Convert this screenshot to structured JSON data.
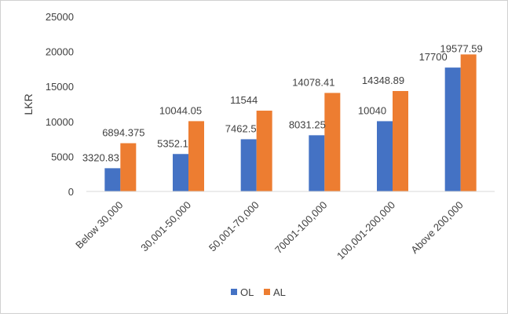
{
  "chart_data": {
    "type": "bar",
    "title": "",
    "xlabel": "",
    "ylabel": "LKR",
    "ylim": [
      0,
      25000
    ],
    "yticks": [
      0,
      5000,
      10000,
      15000,
      20000,
      25000
    ],
    "grid": false,
    "legend_position": "bottom",
    "categories": [
      "Below 30,000",
      "30,001-50,000",
      "50,001-70,000",
      "70001-100,000",
      "100,001-200,000",
      "Above 200,000"
    ],
    "series": [
      {
        "name": "OL",
        "color": "#4472C4",
        "values": [
          3320.83,
          5352.1,
          7462.5,
          8031.25,
          10040,
          17700
        ],
        "labels": [
          "3320.83",
          "5352.1",
          "7462.5",
          "8031.25",
          "10040",
          "17700"
        ]
      },
      {
        "name": "AL",
        "color": "#ED7D31",
        "values": [
          6894.375,
          10044.05,
          11544,
          14078.41,
          14348.89,
          19577.59
        ],
        "labels": [
          "6894.375",
          "10044.05",
          "11544",
          "14078.41",
          "14348.89",
          "19577.59"
        ]
      }
    ]
  }
}
